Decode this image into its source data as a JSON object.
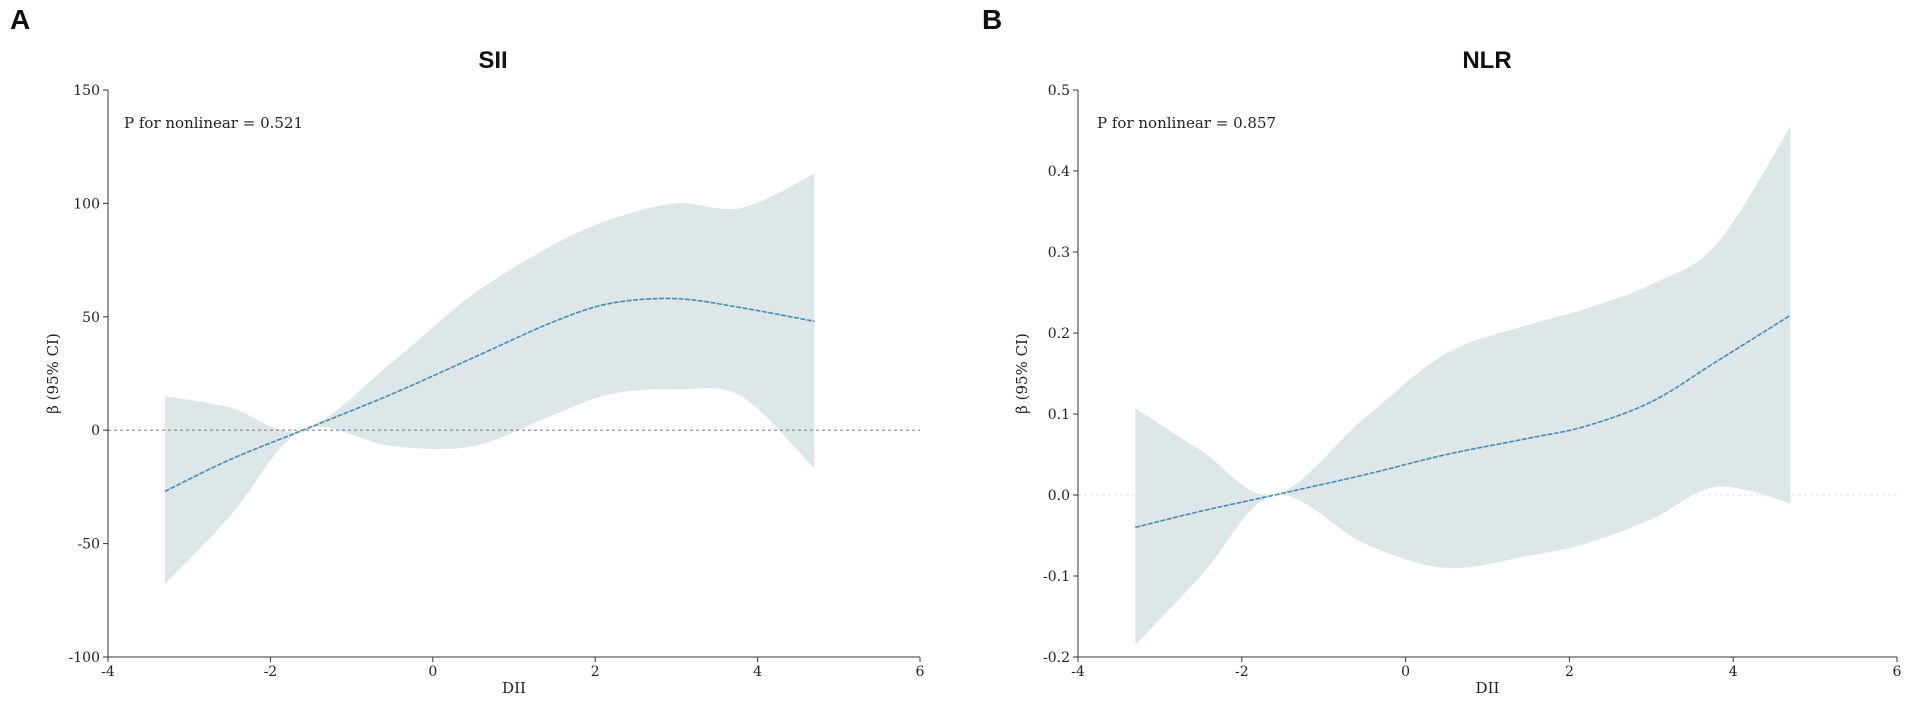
{
  "chart_data": [
    {
      "panel_label": "A",
      "type": "line",
      "title": "SII",
      "xlabel": "DII",
      "ylabel": "β (95% CI)",
      "xlim": [
        -4,
        6
      ],
      "ylim": [
        -100,
        150
      ],
      "xticks": [
        -4,
        -2,
        0,
        2,
        4,
        6
      ],
      "yticks": [
        -100,
        -50,
        0,
        50,
        100,
        150
      ],
      "xtick_labels": [
        "-4",
        "-2",
        "0",
        "2",
        "4",
        "6"
      ],
      "ytick_labels": [
        "-100",
        "-50",
        "0",
        "50",
        "100",
        "150"
      ],
      "annotation": "P for nonlinear = 0.521",
      "reference_line": 0,
      "colors": {
        "line": "#4a8ab5",
        "band": "#dde6e8",
        "reference": "#888888",
        "axis": "#333333"
      },
      "series": [
        {
          "name": "estimate",
          "x": [
            -3.3,
            -2.5,
            -1.6,
            -0.5,
            0.5,
            1.5,
            2.2,
            3.0,
            3.8,
            4.7
          ],
          "y": [
            -27,
            -13,
            0,
            16,
            32,
            48,
            56,
            58,
            54,
            48
          ]
        }
      ],
      "ci_upper": [
        15,
        10,
        0,
        30,
        60,
        82,
        93,
        100,
        98,
        113
      ],
      "ci_lower": [
        -68,
        -38,
        0,
        -7,
        -7,
        7,
        16,
        18,
        15,
        -17
      ]
    },
    {
      "panel_label": "B",
      "type": "line",
      "title": "NLR",
      "xlabel": "DII",
      "ylabel": "β (95% CI)",
      "xlim": [
        -4,
        6
      ],
      "ylim": [
        -0.2,
        0.5
      ],
      "xticks": [
        -4,
        -2,
        0,
        2,
        4,
        6
      ],
      "yticks": [
        -0.2,
        -0.1,
        0.0,
        0.1,
        0.2,
        0.3,
        0.4,
        0.5
      ],
      "xtick_labels": [
        "-4",
        "-2",
        "0",
        "2",
        "4",
        "6"
      ],
      "ytick_labels": [
        "-0.2",
        "-0.1",
        "0.0",
        "0.1",
        "0.2",
        "0.3",
        "0.4",
        "0.5"
      ],
      "annotation": "P for nonlinear = 0.857",
      "reference_line": 0,
      "colors": {
        "line": "#4a8ab5",
        "band": "#dde6e8",
        "reference": "#e4e9ea",
        "axis": "#333333"
      },
      "series": [
        {
          "name": "estimate",
          "x": [
            -3.3,
            -2.5,
            -1.6,
            -0.5,
            0.5,
            1.5,
            2.2,
            3.0,
            3.8,
            4.7
          ],
          "y": [
            -0.04,
            -0.02,
            0.0,
            0.025,
            0.05,
            0.07,
            0.085,
            0.115,
            0.165,
            0.222
          ]
        }
      ],
      "ci_upper": [
        0.107,
        0.055,
        0.0,
        0.095,
        0.175,
        0.21,
        0.23,
        0.26,
        0.31,
        0.455
      ],
      "ci_lower": [
        -0.185,
        -0.1,
        0.0,
        -0.06,
        -0.09,
        -0.075,
        -0.06,
        -0.03,
        0.01,
        -0.01
      ]
    }
  ]
}
